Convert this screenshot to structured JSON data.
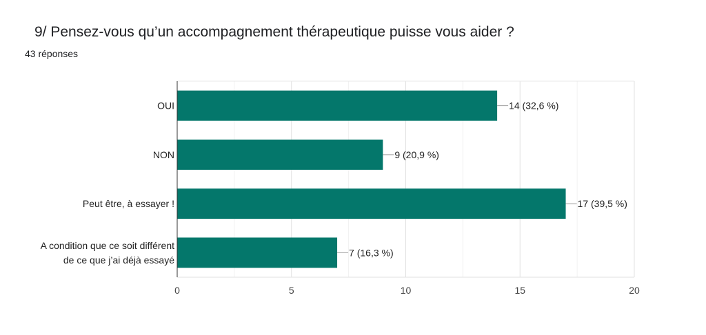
{
  "header": {
    "title": "9/ Pensez-vous qu’un accompagnement thérapeutique puisse vous aider ?",
    "responses": "43 réponses"
  },
  "chart_data": {
    "type": "bar",
    "orientation": "horizontal",
    "categories": [
      [
        "OUI"
      ],
      [
        "NON"
      ],
      [
        "Peut être, à essayer !"
      ],
      [
        "A condition que ce soit différent",
        "de ce que j’ai déjà essayé"
      ]
    ],
    "values": [
      14,
      9,
      17,
      7
    ],
    "value_labels": [
      "14 (32,6 %)",
      "9 (20,9 %)",
      "17 (39,5 %)",
      "7 (16,3 %)"
    ],
    "xlim": [
      0,
      20
    ],
    "xticks": [
      0,
      5,
      10,
      15,
      20
    ],
    "grid": true,
    "bar_color": "#04776b"
  }
}
